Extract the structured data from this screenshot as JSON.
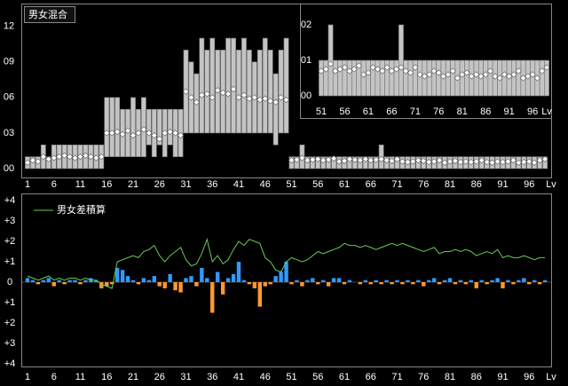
{
  "chart_data": [
    {
      "type": "range_bar",
      "title": "男女混合",
      "x_label": "Lv",
      "x": [
        1,
        2,
        3,
        4,
        5,
        6,
        7,
        8,
        9,
        10,
        11,
        12,
        13,
        14,
        15,
        16,
        17,
        18,
        19,
        20,
        21,
        22,
        23,
        24,
        25,
        26,
        27,
        28,
        29,
        30,
        31,
        32,
        33,
        34,
        35,
        36,
        37,
        38,
        39,
        40,
        41,
        42,
        43,
        44,
        45,
        46,
        47,
        48,
        49,
        50,
        51,
        52,
        53,
        54,
        55,
        56,
        57,
        58,
        59,
        60,
        61,
        62,
        63,
        64,
        65,
        66,
        67,
        68,
        69,
        70,
        71,
        72,
        73,
        74,
        75,
        76,
        77,
        78,
        79,
        80,
        81,
        82,
        83,
        84,
        85,
        86,
        87,
        88,
        89,
        90,
        91,
        92,
        93,
        94,
        95,
        96,
        97,
        98,
        99
      ],
      "min": [
        0,
        0,
        0,
        0,
        0,
        0,
        0,
        0,
        0,
        0,
        0,
        0,
        0,
        0,
        0,
        1,
        1,
        1,
        1,
        1,
        1,
        1,
        1,
        2,
        1,
        2,
        1,
        2,
        1,
        1,
        3,
        3,
        3,
        3,
        3,
        3,
        3,
        3,
        3,
        3,
        3,
        3,
        3,
        3,
        3,
        3,
        3,
        2,
        3,
        3,
        0,
        0,
        0,
        0,
        0,
        0,
        0,
        0,
        0,
        0,
        0,
        0,
        0,
        0,
        0,
        0,
        0,
        0,
        0,
        0,
        0,
        0,
        0,
        0,
        0,
        0,
        0,
        0,
        0,
        0,
        0,
        0,
        0,
        0,
        0,
        0,
        0,
        0,
        0,
        0,
        0,
        0,
        0,
        0,
        0,
        0,
        0,
        0,
        0
      ],
      "max": [
        1,
        1,
        1,
        2,
        1,
        2,
        2,
        2,
        2,
        2,
        2,
        2,
        2,
        2,
        2,
        6,
        6,
        6,
        5,
        5,
        6,
        5,
        6,
        5,
        5,
        5,
        5,
        5,
        5,
        5,
        10,
        9,
        8,
        11,
        10,
        11,
        10,
        10,
        11,
        11,
        10,
        11,
        10,
        9,
        10,
        11,
        10,
        8,
        10,
        11,
        1,
        1,
        2,
        1,
        1,
        1,
        1,
        1,
        1,
        1,
        1,
        1,
        1,
        1,
        1,
        1,
        1,
        2,
        1,
        1,
        1,
        1,
        1,
        1,
        1,
        1,
        1,
        1,
        1,
        1,
        1,
        1,
        1,
        1,
        1,
        1,
        1,
        1,
        1,
        1,
        1,
        1,
        1,
        1,
        1,
        1,
        1,
        1,
        1
      ],
      "avg": [
        0.5,
        0.7,
        0.6,
        1,
        0.8,
        0.9,
        1,
        1.1,
        1,
        0.9,
        1,
        1.1,
        1,
        0.9,
        1,
        3,
        3,
        3.1,
        2.9,
        3.2,
        2.8,
        3,
        3.3,
        3,
        2.8,
        2.5,
        3,
        3.1,
        3,
        2.8,
        6.5,
        6,
        5.6,
        6.2,
        6.3,
        6,
        6.6,
        6.4,
        6.3,
        6.7,
        6,
        6.2,
        5.9,
        6,
        5.8,
        5.9,
        5.7,
        5.6,
        6,
        5.8,
        0.7,
        0.75,
        0.9,
        0.7,
        0.75,
        0.8,
        0.7,
        0.75,
        0.85,
        0.6,
        0.65,
        0.8,
        0.75,
        0.7,
        0.8,
        0.7,
        0.75,
        0.8,
        0.7,
        0.65,
        0.8,
        0.6,
        0.55,
        0.6,
        0.7,
        0.65,
        0.55,
        0.6,
        0.7,
        0.5,
        0.6,
        0.65,
        0.55,
        0.6,
        0.55,
        0.6,
        0.7,
        0.55,
        0.5,
        0.6,
        0.55,
        0.6,
        0.7,
        0.5,
        0.55,
        0.6,
        0.5,
        0.7,
        0.8
      ],
      "xlim": [
        1,
        99
      ],
      "xticks": [
        1,
        6,
        11,
        16,
        21,
        26,
        31,
        36,
        41,
        46,
        51,
        56,
        61,
        66,
        71,
        76,
        81,
        86,
        91,
        96
      ],
      "ylim": [
        0,
        12.5
      ],
      "yticks": [
        {
          "value": 0,
          "label": "00"
        },
        {
          "value": 3,
          "label": "03"
        },
        {
          "value": 6,
          "label": "06"
        },
        {
          "value": 9,
          "label": "09"
        },
        {
          "value": 12,
          "label": "12"
        }
      ],
      "bar_color": "#c4c4c4",
      "marker_color": "#ffffff"
    },
    {
      "type": "range_bar",
      "x_label": "Lv",
      "x": [
        51,
        52,
        53,
        54,
        55,
        56,
        57,
        58,
        59,
        60,
        61,
        62,
        63,
        64,
        65,
        66,
        67,
        68,
        69,
        70,
        71,
        72,
        73,
        74,
        75,
        76,
        77,
        78,
        79,
        80,
        81,
        82,
        83,
        84,
        85,
        86,
        87,
        88,
        89,
        90,
        91,
        92,
        93,
        94,
        95,
        96,
        97,
        98,
        99
      ],
      "min": [
        0,
        0,
        0,
        0,
        0,
        0,
        0,
        0,
        0,
        0,
        0,
        0,
        0,
        0,
        0,
        0,
        0,
        0,
        0,
        0,
        0,
        0,
        0,
        0,
        0,
        0,
        0,
        0,
        0,
        0,
        0,
        0,
        0,
        0,
        0,
        0,
        0,
        0,
        0,
        0,
        0,
        0,
        0,
        0,
        0,
        0,
        0,
        0,
        0
      ],
      "max": [
        1,
        1,
        2,
        1,
        1,
        1,
        1,
        1,
        1,
        1,
        1,
        1,
        1,
        1,
        1,
        1,
        1,
        2,
        1,
        1,
        1,
        1,
        1,
        1,
        1,
        1,
        1,
        1,
        1,
        1,
        1,
        1,
        1,
        1,
        1,
        1,
        1,
        1,
        1,
        1,
        1,
        1,
        1,
        1,
        1,
        1,
        1,
        1,
        1
      ],
      "avg": [
        0.7,
        0.75,
        0.9,
        0.7,
        0.75,
        0.8,
        0.7,
        0.75,
        0.85,
        0.6,
        0.65,
        0.8,
        0.75,
        0.7,
        0.8,
        0.7,
        0.75,
        0.8,
        0.7,
        0.65,
        0.8,
        0.6,
        0.55,
        0.6,
        0.7,
        0.65,
        0.55,
        0.6,
        0.7,
        0.5,
        0.6,
        0.65,
        0.55,
        0.6,
        0.55,
        0.6,
        0.7,
        0.55,
        0.5,
        0.6,
        0.55,
        0.6,
        0.7,
        0.5,
        0.55,
        0.6,
        0.5,
        0.7,
        0.8
      ],
      "xlim": [
        51,
        99
      ],
      "xticks": [
        51,
        56,
        61,
        66,
        71,
        76,
        81,
        86,
        91,
        96
      ],
      "ylim": [
        0,
        2.3
      ],
      "yticks": [
        {
          "value": 0,
          "label": "00"
        },
        {
          "value": 1,
          "label": "01"
        },
        {
          "value": 2,
          "label": "02"
        }
      ],
      "bar_color": "#c4c4c4",
      "marker_color": "#ffffff"
    },
    {
      "type": "bar_line",
      "x_label": "Lv",
      "x": [
        1,
        2,
        3,
        4,
        5,
        6,
        7,
        8,
        9,
        10,
        11,
        12,
        13,
        14,
        15,
        16,
        17,
        18,
        19,
        20,
        21,
        22,
        23,
        24,
        25,
        26,
        27,
        28,
        29,
        30,
        31,
        32,
        33,
        34,
        35,
        36,
        37,
        38,
        39,
        40,
        41,
        42,
        43,
        44,
        45,
        46,
        47,
        48,
        49,
        50,
        51,
        52,
        53,
        54,
        55,
        56,
        57,
        58,
        59,
        60,
        61,
        62,
        63,
        64,
        65,
        66,
        67,
        68,
        69,
        70,
        71,
        72,
        73,
        74,
        75,
        76,
        77,
        78,
        79,
        80,
        81,
        82,
        83,
        84,
        85,
        86,
        87,
        88,
        89,
        90,
        91,
        92,
        93,
        94,
        95,
        96,
        97,
        98,
        99
      ],
      "values": [
        0.2,
        0.1,
        -0.1,
        0.1,
        0.2,
        -0.2,
        0.1,
        -0.1,
        0.1,
        0.1,
        -0.1,
        0.1,
        0.2,
        0.1,
        -0.3,
        -0.2,
        -0.1,
        0.7,
        0.6,
        0.3,
        0.1,
        -0.1,
        0.2,
        0.1,
        0.3,
        -0.2,
        -0.3,
        0.4,
        -0.4,
        -0.5,
        0.2,
        0.3,
        -0.2,
        0.7,
        0.2,
        -1.5,
        0.5,
        -0.6,
        0.2,
        0.4,
        1,
        0.1,
        -0.1,
        -0.3,
        -1.2,
        -0.2,
        -0.1,
        0.3,
        0.5,
        1,
        -0.1,
        0.1,
        -0.2,
        0.1,
        0.2,
        -0.1,
        0.1,
        -0.2,
        0.2,
        0.2,
        -0.1,
        0.1,
        0,
        -0.1,
        0.1,
        -0.1,
        0.1,
        -0.1,
        0.1,
        -0.1,
        0.1,
        -0.1,
        0.1,
        -0.1,
        0.1,
        -0.2,
        0.1,
        0.2,
        -0.1,
        0.1,
        0.2,
        -0.1,
        0.1,
        -0.1,
        0.1,
        -0.3,
        0.1,
        -0.1,
        0.1,
        0.2,
        -0.3,
        0.1,
        -0.1,
        0.1,
        0.2,
        -0.1,
        0.1,
        -0.1,
        0.1
      ],
      "series": [
        {
          "name": "男女差積算",
          "color": "#66cc55",
          "values": [
            0.3,
            0.2,
            0.1,
            0.2,
            0.3,
            0.1,
            0.2,
            0.1,
            0.2,
            0.2,
            0.1,
            0.2,
            0.1,
            0.1,
            -0.1,
            -0.2,
            -0.3,
            1.0,
            1.1,
            1.2,
            1.3,
            1.2,
            1.5,
            1.6,
            1.8,
            1.3,
            1.0,
            1.3,
            1.5,
            1.7,
            1.1,
            0.8,
            0.9,
            1.4,
            2.1,
            1.0,
            1.3,
            0.9,
            1.1,
            1.6,
            2.0,
            1.8,
            2.1,
            2.0,
            1.9,
            1.2,
            1.0,
            0.6,
            0.5,
            1.0,
            1.2,
            1.1,
            1.0,
            1.1,
            1.3,
            1.5,
            1.4,
            1.5,
            1.6,
            1.7,
            1.9,
            1.8,
            1.8,
            1.7,
            1.8,
            1.7,
            1.6,
            1.7,
            1.8,
            1.9,
            1.8,
            1.9,
            1.8,
            1.7,
            1.6,
            1.5,
            1.6,
            1.7,
            1.4,
            1.5,
            1.5,
            1.6,
            1.5,
            1.6,
            1.5,
            1.3,
            1.4,
            1.5,
            1.4,
            1.6,
            1.2,
            1.3,
            1.2,
            1.2,
            1.3,
            1.2,
            1.1,
            1.2,
            1.2
          ]
        }
      ],
      "pos_color": "#3399ff",
      "neg_color": "#ff9933",
      "neg_tick_color": "#e6d36a",
      "xlim": [
        1,
        99
      ],
      "xticks": [
        1,
        6,
        11,
        16,
        21,
        26,
        31,
        36,
        41,
        46,
        51,
        56,
        61,
        66,
        71,
        76,
        81,
        86,
        91,
        96
      ],
      "ylim": [
        -4,
        4
      ],
      "yticks": [
        {
          "value": 4,
          "label": "+4"
        },
        {
          "value": 3,
          "label": "+3"
        },
        {
          "value": 2,
          "label": "+2"
        },
        {
          "value": 1,
          "label": "+1"
        },
        {
          "value": 0,
          "label": "0"
        },
        {
          "value": -1,
          "label": "+1"
        },
        {
          "value": -2,
          "label": "+2"
        },
        {
          "value": -3,
          "label": "+3"
        },
        {
          "value": -4,
          "label": "+4"
        }
      ]
    }
  ]
}
